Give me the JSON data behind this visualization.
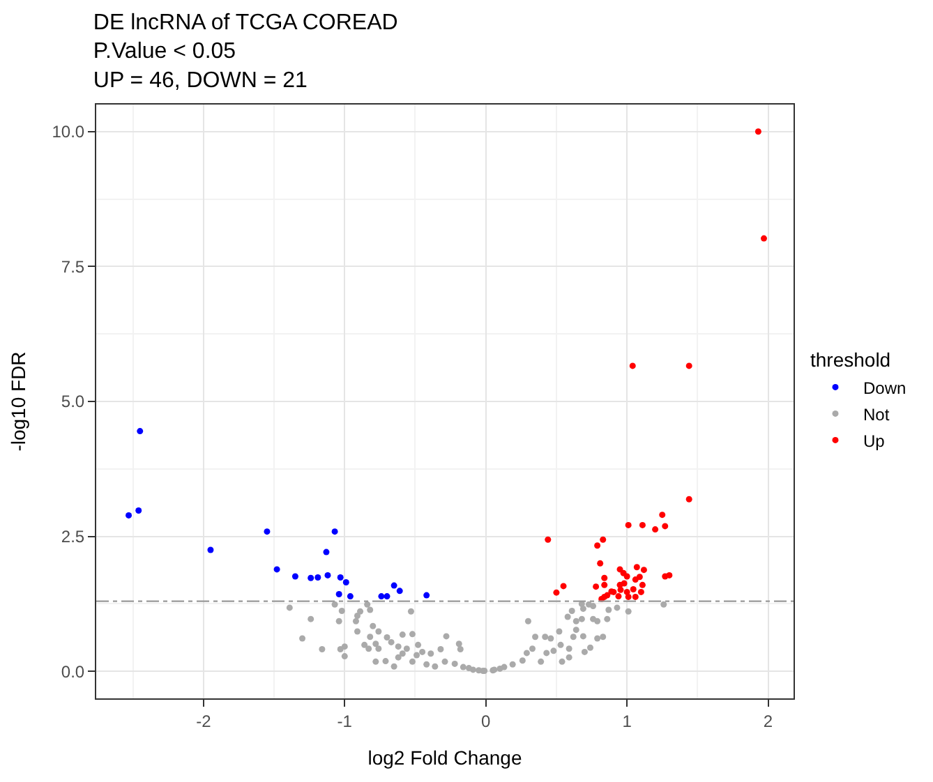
{
  "chart_data": {
    "type": "scatter",
    "title": "DE lncRNA of TCGA COREAD\nP.Value < 0.05\nUP = 46, DOWN = 21",
    "xlabel": "log2 Fold Change",
    "ylabel": "-log10 FDR",
    "legend_title": "threshold",
    "legend": "right",
    "grid": true,
    "marker": "circle",
    "xlim": [
      -2.76,
      2.18
    ],
    "xticks": [
      -2,
      -1,
      0,
      1,
      2
    ],
    "ylim": [
      -0.5,
      10.5
    ],
    "yticks": [
      {
        "value": 0,
        "label": "0.0"
      },
      {
        "value": 2.5,
        "label": "2.5"
      },
      {
        "value": 5,
        "label": "5.0"
      },
      {
        "value": 7.5,
        "label": "7.5"
      },
      {
        "value": 10,
        "label": "10.0"
      }
    ],
    "ref_lines": [
      {
        "axis": "y",
        "value": 1.3,
        "color": "#999999",
        "line_style": "dashed"
      }
    ],
    "series": [
      {
        "name": "Down",
        "color": "#0000ff",
        "x": [
          -2.45,
          -2.53,
          -2.46,
          -1.95,
          -1.55,
          -1.48,
          -1.35,
          -1.24,
          -1.19,
          -1.12,
          -1.13,
          -1.07,
          -1.03,
          -0.99,
          -1.04,
          -0.96,
          -0.74,
          -0.7,
          -0.65,
          -0.61,
          -0.42
        ],
        "values": [
          4.45,
          2.89,
          2.98,
          2.25,
          2.59,
          1.89,
          1.76,
          1.73,
          1.74,
          1.78,
          2.21,
          2.59,
          1.74,
          1.65,
          1.43,
          1.39,
          1.39,
          1.39,
          1.59,
          1.49,
          1.41
        ]
      },
      {
        "name": "Not",
        "color": "#aaaaaa",
        "x": [
          -1.39,
          -1.24,
          -1.3,
          -1.16,
          -1.07,
          -1.02,
          -1.04,
          -1.03,
          -1.0,
          -1.0,
          -0.91,
          -0.92,
          -0.89,
          -0.84,
          -0.82,
          -0.91,
          -0.8,
          -0.76,
          -0.82,
          -0.86,
          -0.83,
          -0.78,
          -0.76,
          -0.7,
          -0.67,
          -0.78,
          -0.71,
          -0.65,
          -0.59,
          -0.53,
          -0.52,
          -0.62,
          -0.56,
          -0.48,
          -0.45,
          -0.39,
          -0.32,
          -0.28,
          -0.19,
          -0.18,
          -0.29,
          -0.22,
          -0.16,
          -0.09,
          -0.02,
          -0.62,
          -0.52,
          -0.42,
          -0.36,
          -0.49,
          -0.59,
          -0.12,
          -0.05,
          0.05,
          0.1,
          1.26,
          1.01,
          0.93,
          0.87,
          0.86,
          0.79,
          0.76,
          0.73,
          0.69,
          0.68,
          0.61,
          0.58,
          0.52,
          0.64,
          0.69,
          0.79,
          0.83,
          0.74,
          0.7,
          0.62,
          0.3,
          0.35,
          0.42,
          0.46,
          0.53,
          0.59,
          0.54,
          0.43,
          0.33,
          0.26,
          0.19,
          0.13,
          0.06,
          -0.01,
          0.39,
          0.29,
          0.48,
          0.59,
          0.64,
          0.68,
          0.76
        ],
        "values": [
          1.18,
          0.97,
          0.61,
          0.41,
          1.24,
          1.12,
          0.93,
          0.41,
          0.46,
          0.28,
          1.03,
          0.93,
          1.11,
          1.24,
          1.14,
          0.74,
          0.84,
          0.74,
          0.64,
          0.49,
          0.42,
          0.51,
          0.42,
          0.63,
          0.54,
          0.18,
          0.19,
          0.09,
          0.68,
          1.11,
          0.69,
          0.46,
          0.42,
          0.49,
          0.36,
          0.33,
          0.41,
          0.65,
          0.51,
          0.41,
          0.18,
          0.14,
          0.08,
          0.03,
          0.01,
          0.26,
          0.18,
          0.13,
          0.09,
          0.3,
          0.33,
          0.06,
          0.02,
          0.02,
          0.05,
          1.24,
          1.11,
          1.18,
          1.14,
          0.97,
          0.93,
          0.97,
          1.24,
          1.16,
          0.97,
          1.12,
          1.01,
          0.74,
          0.77,
          0.65,
          0.61,
          0.64,
          0.44,
          0.36,
          0.64,
          0.93,
          0.64,
          0.64,
          0.61,
          0.49,
          0.26,
          0.18,
          0.34,
          0.42,
          0.2,
          0.13,
          0.08,
          0.03,
          0.01,
          0.18,
          0.34,
          0.38,
          0.42,
          0.93,
          1.25,
          1.21
        ]
      },
      {
        "name": "Up",
        "color": "#ff0000",
        "x": [
          1.93,
          1.97,
          1.04,
          1.44,
          1.44,
          1.25,
          1.01,
          1.11,
          1.2,
          1.27,
          0.44,
          0.83,
          0.79,
          0.81,
          0.95,
          1.07,
          1.12,
          0.975,
          1.0,
          0.84,
          1.09,
          1.06,
          1.27,
          1.3,
          0.78,
          0.84,
          0.98,
          0.95,
          1.11,
          0.55,
          0.5,
          0.89,
          0.905,
          0.955,
          1.0,
          1.045,
          1.1,
          0.86,
          0.84,
          0.82,
          0.94,
          1.01,
          1.06
        ],
        "values": [
          10.0,
          8.02,
          5.66,
          5.66,
          3.19,
          2.9,
          2.71,
          2.71,
          2.63,
          2.69,
          2.44,
          2.44,
          2.33,
          2.0,
          1.89,
          1.93,
          1.88,
          1.82,
          1.76,
          1.73,
          1.75,
          1.7,
          1.76,
          1.78,
          1.57,
          1.6,
          1.63,
          1.6,
          1.6,
          1.58,
          1.46,
          1.48,
          1.47,
          1.51,
          1.47,
          1.52,
          1.47,
          1.41,
          1.38,
          1.34,
          1.39,
          1.38,
          1.38
        ]
      }
    ]
  }
}
